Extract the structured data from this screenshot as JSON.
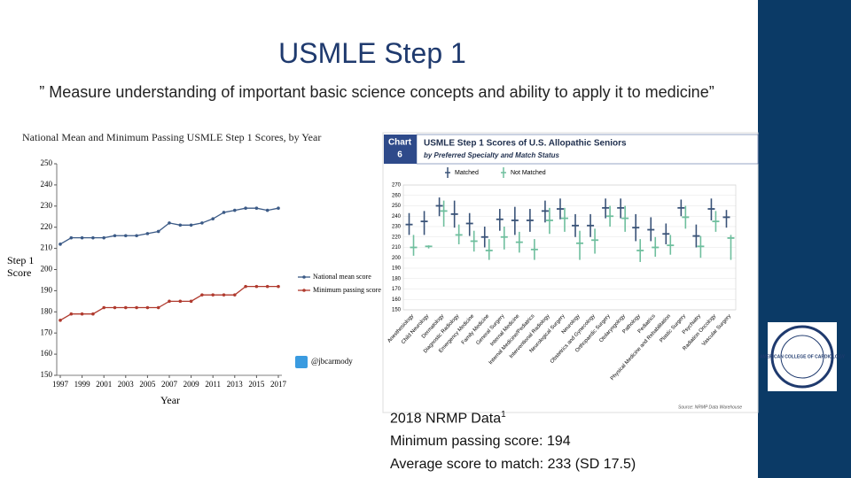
{
  "slide": {
    "title": "USMLE Step 1",
    "quote": "” Measure understanding of important basic science concepts and ability to apply it to medicine”",
    "notes": [
      "2018 NRMP Data",
      "Minimum passing score: 194",
      "Average score to match: 233 (SD 17.5)"
    ],
    "note_superscript": "1",
    "logo": "AMERICAN COLLEGE OF CARDIOLOGY"
  },
  "chart_data": [
    {
      "type": "line",
      "title": "National Mean and Minimum Passing USMLE Step 1 Scores, by Year",
      "x_label": "Year",
      "y_label": "Step 1 Score",
      "annotation": "@jbcarmody",
      "x": [
        1997,
        1998,
        1999,
        2000,
        2001,
        2002,
        2003,
        2004,
        2005,
        2006,
        2007,
        2008,
        2009,
        2010,
        2011,
        2012,
        2013,
        2014,
        2015,
        2016,
        2017
      ],
      "series": [
        {
          "name": "National mean score",
          "color": "#3b5a86",
          "values": [
            212,
            215,
            215,
            215,
            215,
            216,
            216,
            216,
            217,
            218,
            222,
            221,
            221,
            222,
            224,
            227,
            228,
            229,
            229,
            228,
            229
          ]
        },
        {
          "name": "Minimum passing score",
          "color": "#b03a2e",
          "values": [
            176,
            179,
            179,
            179,
            182,
            182,
            182,
            182,
            182,
            182,
            185,
            185,
            185,
            188,
            188,
            188,
            188,
            192,
            192,
            192,
            192
          ]
        }
      ],
      "xlim": [
        1997,
        2017
      ],
      "xticks": [
        1997,
        1999,
        2001,
        2003,
        2005,
        2007,
        2009,
        2011,
        2013,
        2015,
        2017
      ],
      "ylim": [
        150,
        250
      ],
      "yticks": [
        150,
        160,
        170,
        180,
        190,
        200,
        210,
        220,
        230,
        240,
        250
      ]
    },
    {
      "type": "range",
      "badge": [
        "Chart",
        "6"
      ],
      "title": "USMLE Step 1 Scores of U.S. Allopathic Seniors",
      "subtitle": "by Preferred Specialty and Match Status",
      "source": "Source: NRMP Data Warehouse",
      "categories": [
        "Anesthesiology",
        "Child Neurology",
        "Dermatology",
        "Diagnostic Radiology",
        "Emergency Medicine",
        "Family Medicine",
        "General Surgery",
        "Internal Medicine",
        "Internal Medicine/Pediatrics",
        "Interventional Radiology",
        "Neurological Surgery",
        "Neurology",
        "Obstetrics and Gynecology",
        "Orthopaedic Surgery",
        "Otolaryngology",
        "Pathology",
        "Pediatrics",
        "Physical Medicine and Rehabilitation",
        "Plastic Surgery",
        "Psychiatry",
        "Radiation Oncology",
        "Vascular Surgery"
      ],
      "series": [
        {
          "name": "Matched",
          "color": "#3a5378",
          "low": [
            222,
            222,
            240,
            229,
            221,
            210,
            226,
            222,
            225,
            234,
            237,
            220,
            220,
            238,
            238,
            216,
            216,
            213,
            240,
            210,
            236,
            229
          ],
          "values": [
            232,
            235,
            250,
            242,
            233,
            220,
            237,
            236,
            236,
            245,
            247,
            231,
            231,
            248,
            248,
            229,
            227,
            223,
            248,
            221,
            247,
            239
          ],
          "high": [
            243,
            245,
            258,
            255,
            243,
            230,
            247,
            249,
            247,
            255,
            257,
            242,
            242,
            257,
            257,
            242,
            239,
            233,
            256,
            232,
            257,
            246
          ]
        },
        {
          "name": "Not Matched",
          "color": "#6fbf9e",
          "low": [
            202,
            209,
            230,
            213,
            206,
            198,
            208,
            205,
            198,
            223,
            225,
            198,
            204,
            230,
            225,
            196,
            201,
            203,
            228,
            200,
            225,
            198
          ],
          "values": [
            210,
            211,
            245,
            222,
            216,
            207,
            220,
            215,
            208,
            236,
            238,
            214,
            217,
            240,
            238,
            207,
            210,
            212,
            239,
            211,
            235,
            219
          ],
          "high": [
            222,
            212,
            255,
            232,
            226,
            218,
            230,
            225,
            218,
            248,
            248,
            226,
            228,
            250,
            250,
            218,
            220,
            222,
            250,
            221,
            245,
            222
          ]
        }
      ],
      "ylim": [
        150,
        270
      ],
      "yticks": [
        150,
        160,
        170,
        180,
        190,
        200,
        210,
        220,
        230,
        240,
        250,
        260,
        270
      ],
      "grid": true
    }
  ]
}
